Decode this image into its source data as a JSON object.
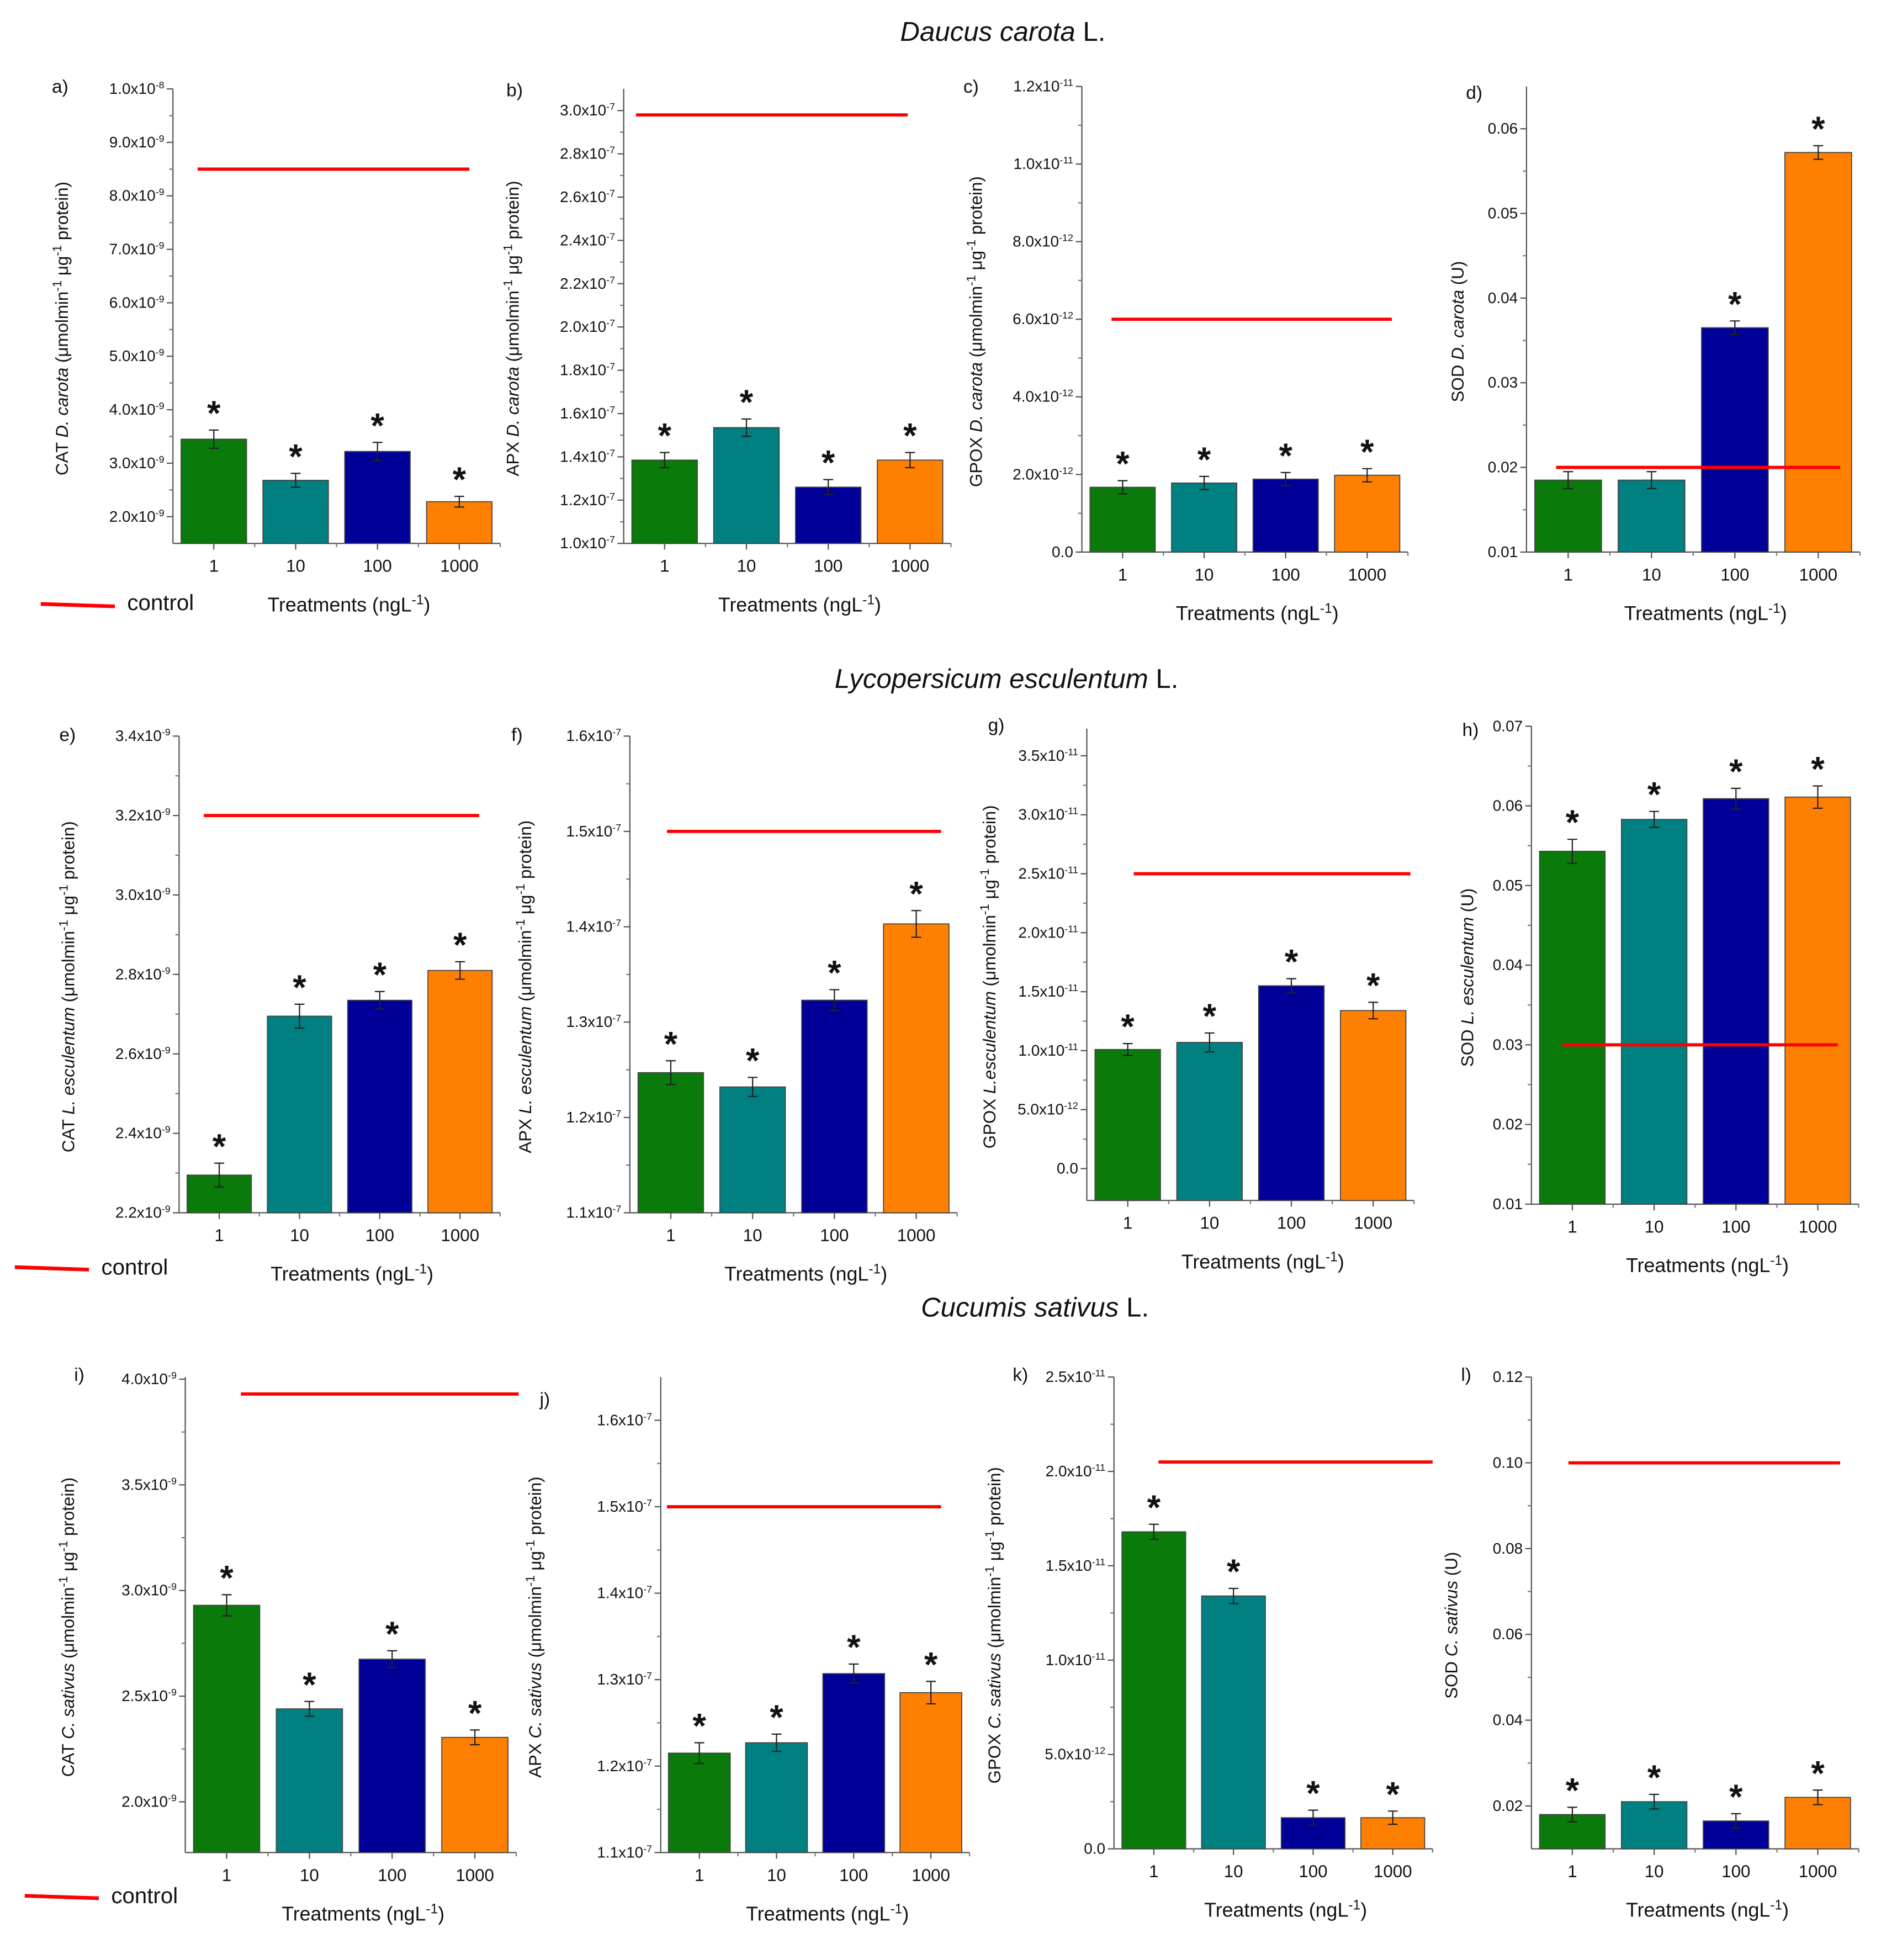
{
  "section_titles": [
    {
      "species": "Daucus carota",
      "suffix": "L."
    },
    {
      "species": "Lycopersicum esculentum",
      "suffix": "L."
    },
    {
      "species": "Cucumis sativus",
      "suffix": "L."
    }
  ],
  "legend": {
    "label": "control",
    "color": "#ff0000"
  },
  "bar_colors": [
    "#0a7a0a",
    "#008080",
    "#000099",
    "#ff8000"
  ],
  "chart_data": [
    {
      "panel": "a)",
      "type": "bar",
      "categories": [
        "1",
        "10",
        "100",
        "1000"
      ],
      "values": [
        3.45e-09,
        2.68e-09,
        3.22e-09,
        2.28e-09
      ],
      "errors": [
        1.7e-10,
        1.3e-10,
        1.7e-10,
        1e-10
      ],
      "significant": [
        true,
        true,
        true,
        true
      ],
      "control": 8.5e-09,
      "ylim": [
        1.5e-09,
        1e-08
      ],
      "yticks": [
        2e-09,
        3e-09,
        4e-09,
        5e-09,
        6e-09,
        7e-09,
        8e-09,
        9e-09,
        1e-08
      ],
      "ytick_labels": [
        "2.0x10^-9",
        "3.0x10^-9",
        "4.0x10^-9",
        "5.0x10^-9",
        "6.0x10^-9",
        "7.0x10^-9",
        "8.0x10^-9",
        "9.0x10^-9",
        "1.0x10^-8"
      ],
      "ylabel": {
        "prefix": "CAT",
        "species": "D. carota",
        "unit": "(μmolmin^-1 μg^-1 protein)"
      },
      "xlabel": "Treatments (ngL^-1)"
    },
    {
      "panel": "b)",
      "type": "bar",
      "categories": [
        "1",
        "10",
        "100",
        "1000"
      ],
      "values": [
        1.385e-07,
        1.535e-07,
        1.26e-07,
        1.385e-07
      ],
      "errors": [
        3.5e-09,
        4e-09,
        3.5e-09,
        3.5e-09
      ],
      "significant": [
        true,
        true,
        true,
        true
      ],
      "control": 2.98e-07,
      "ylim": [
        1e-07,
        3.1e-07
      ],
      "yticks": [
        1e-07,
        1.2e-07,
        1.4e-07,
        1.6e-07,
        1.8e-07,
        2e-07,
        2.2e-07,
        2.4e-07,
        2.6e-07,
        2.8e-07,
        3e-07
      ],
      "ytick_labels": [
        "1.0x10^-7",
        "1.2x10^-7",
        "1.4x10^-7",
        "1.6x10^-7",
        "1.8x10^-7",
        "2.0x10^-7",
        "2.2x10^-7",
        "2.4x10^-7",
        "2.6x10^-7",
        "2.8x10^-7",
        "3.0x10^-7"
      ],
      "ylabel": {
        "prefix": "APX",
        "species": "D. carota",
        "unit": "(μmolmin^-1 μg^-1 protein)"
      },
      "xlabel": "Treatments (ngL^-1)"
    },
    {
      "panel": "c)",
      "type": "bar",
      "categories": [
        "1",
        "10",
        "100",
        "1000"
      ],
      "values": [
        1.67e-12,
        1.78e-12,
        1.88e-12,
        1.98e-12
      ],
      "errors": [
        1.7e-13,
        1.7e-13,
        1.7e-13,
        1.7e-13
      ],
      "significant": [
        true,
        true,
        true,
        true
      ],
      "control": 6e-12,
      "ylim": [
        0,
        1.2e-11
      ],
      "yticks": [
        0,
        2e-12,
        4e-12,
        6e-12,
        8e-12,
        1e-11,
        1.2e-11
      ],
      "ytick_labels": [
        "0.0",
        "2.0x10^-12",
        "4.0x10^-12",
        "6.0x10^-12",
        "8.0x10^-12",
        "1.0x10^-11",
        "1.2x10^-11"
      ],
      "ylabel": {
        "prefix": "GPOX",
        "species": "D. carota",
        "unit": "(μmolmin^-1 μg^-1 protein)"
      },
      "xlabel": "Treatments (ngL^-1)"
    },
    {
      "panel": "d)",
      "type": "bar",
      "categories": [
        "1",
        "10",
        "100",
        "1000"
      ],
      "values": [
        0.0185,
        0.0185,
        0.0365,
        0.0572
      ],
      "errors": [
        0.001,
        0.001,
        0.0008,
        0.0008
      ],
      "significant": [
        false,
        false,
        true,
        true
      ],
      "control": 0.02,
      "ylim": [
        0.01,
        0.065
      ],
      "yticks": [
        0.01,
        0.02,
        0.03,
        0.04,
        0.05,
        0.06
      ],
      "ytick_labels": [
        "0.01",
        "0.02",
        "0.03",
        "0.04",
        "0.05",
        "0.06"
      ],
      "ylabel": {
        "prefix": "SOD",
        "species": "D. carota",
        "unit": "(U)"
      },
      "xlabel": "Treatments (ngL^-1)"
    },
    {
      "panel": "e)",
      "type": "bar",
      "categories": [
        "1",
        "10",
        "100",
        "1000"
      ],
      "values": [
        2.295e-09,
        2.695e-09,
        2.735e-09,
        2.81e-09
      ],
      "errors": [
        3e-11,
        3e-11,
        2.2e-11,
        2.2e-11
      ],
      "significant": [
        true,
        true,
        true,
        true
      ],
      "control": 3.2e-09,
      "ylim": [
        2.2e-09,
        3.4e-09
      ],
      "yticks": [
        2.2e-09,
        2.4e-09,
        2.6e-09,
        2.8e-09,
        3e-09,
        3.2e-09,
        3.4e-09
      ],
      "ytick_labels": [
        "2.2x10^-9",
        "2.4x10^-9",
        "2.6x10^-9",
        "2.8x10^-9",
        "3.0x10^-9",
        "3.2x10^-9",
        "3.4x10^-9"
      ],
      "ylabel": {
        "prefix": "CAT",
        "species": "L. esculentum",
        "unit": "(μmolmin^-1 μg^-1 protein)"
      },
      "xlabel": "Treatments (ngL^-1)"
    },
    {
      "panel": "f)",
      "type": "bar",
      "categories": [
        "1",
        "10",
        "100",
        "1000"
      ],
      "values": [
        1.247e-07,
        1.232e-07,
        1.323e-07,
        1.403e-07
      ],
      "errors": [
        1.25e-09,
        1e-09,
        1.1e-09,
        1.4e-09
      ],
      "significant": [
        true,
        true,
        true,
        true
      ],
      "control": 1.5e-07,
      "ylim": [
        1.1e-07,
        1.6e-07
      ],
      "yticks": [
        1.1e-07,
        1.2e-07,
        1.3e-07,
        1.4e-07,
        1.5e-07,
        1.6e-07
      ],
      "ytick_labels": [
        "1.1x10^-7",
        "1.2x10^-7",
        "1.3x10^-7",
        "1.4x10^-7",
        "1.5x10^-7",
        "1.6x10^-7"
      ],
      "ylabel": {
        "prefix": "APX",
        "species": "L. esculentum",
        "unit": "(μmolmin^-1 μg^-1 protein)"
      },
      "xlabel": "Treatments (ngL^-1)"
    },
    {
      "panel": "g)",
      "type": "bar",
      "categories": [
        "1",
        "10",
        "100",
        "1000"
      ],
      "values": [
        1.01e-11,
        1.07e-11,
        1.55e-11,
        1.34e-11
      ],
      "errors": [
        5e-13,
        8e-13,
        6e-13,
        7e-13
      ],
      "significant": [
        true,
        true,
        true,
        true
      ],
      "control": 2.5e-11,
      "ylim": [
        -2.7e-12,
        3.73e-11
      ],
      "yticks": [
        0,
        5e-12,
        1e-11,
        1.5e-11,
        2e-11,
        2.5e-11,
        3e-11,
        3.5e-11
      ],
      "ytick_labels": [
        "0.0",
        "5.0x10^-12",
        "1.0x10^-11",
        "1.5x10^-11",
        "2.0x10^-11",
        "2.5x10^-11",
        "3.0x10^-11",
        "3.5x10^-11"
      ],
      "ylabel": {
        "prefix": "GPOX",
        "species": "L.esculentum",
        "unit": "(μmolmin^-1 μg^-1 protein)"
      },
      "xlabel": "Treatments (ngL^-1)"
    },
    {
      "panel": "h)",
      "type": "bar",
      "categories": [
        "1",
        "10",
        "100",
        "1000"
      ],
      "values": [
        0.0543,
        0.0583,
        0.0609,
        0.0611
      ],
      "errors": [
        0.0015,
        0.001,
        0.0013,
        0.0014
      ],
      "significant": [
        true,
        true,
        true,
        true
      ],
      "control": 0.03,
      "ylim": [
        0.01,
        0.07
      ],
      "yticks": [
        0.01,
        0.02,
        0.03,
        0.04,
        0.05,
        0.06,
        0.07
      ],
      "ytick_labels": [
        "0.01",
        "0.02",
        "0.03",
        "0.04",
        "0.05",
        "0.06",
        "0.07"
      ],
      "ylabel": {
        "prefix": "SOD",
        "species": "L.  esculentum",
        "unit": "(U)"
      },
      "xlabel": "Treatments (ngL^-1)"
    },
    {
      "panel": "i)",
      "type": "bar",
      "categories": [
        "1",
        "10",
        "100",
        "1000"
      ],
      "values": [
        2.93e-09,
        2.44e-09,
        2.675e-09,
        2.305e-09
      ],
      "errors": [
        5e-11,
        3.5e-11,
        4e-11,
        3.5e-11
      ],
      "significant": [
        true,
        true,
        true,
        true
      ],
      "control": 3.93e-09,
      "ylim": [
        1.76e-09,
        4.01e-09
      ],
      "yticks": [
        2e-09,
        2.5e-09,
        3e-09,
        3.5e-09,
        4e-09
      ],
      "ytick_labels": [
        "2.0x10^-9",
        "2.5x10^-9",
        "3.0x10^-9",
        "3.5x10^-9",
        "4.0x10^-9"
      ],
      "ylabel": {
        "prefix": "CAT",
        "species": "C. sativus",
        "unit": "(μmolmin^-1 μg^-1 protein)"
      },
      "xlabel": "Treatments (ngL^-1)"
    },
    {
      "panel": "j)",
      "type": "bar",
      "categories": [
        "1",
        "10",
        "100",
        "1000"
      ],
      "values": [
        1.215e-07,
        1.227e-07,
        1.307e-07,
        1.285e-07
      ],
      "errors": [
        1.2e-09,
        1e-09,
        1.1e-09,
        1.3e-09
      ],
      "significant": [
        true,
        true,
        true,
        true
      ],
      "control": 1.5e-07,
      "ylim": [
        1.1e-07,
        1.65e-07
      ],
      "yticks": [
        1.1e-07,
        1.2e-07,
        1.3e-07,
        1.4e-07,
        1.5e-07,
        1.6e-07
      ],
      "ytick_labels": [
        "1.1x10^-7",
        "1.2x10^-7",
        "1.3x10^-7",
        "1.4x10^-7",
        "1.5x10^-7",
        "1.6x10^-7"
      ],
      "ylabel": {
        "prefix": "APX",
        "species": "C. sativus",
        "unit": "(μmolmin^-1 μg^-1 protein)"
      },
      "xlabel": "Treatments (ngL^-1)"
    },
    {
      "panel": "k)",
      "type": "bar",
      "categories": [
        "1",
        "10",
        "100",
        "1000"
      ],
      "values": [
        1.68e-11,
        1.34e-11,
        1.65e-12,
        1.65e-12
      ],
      "errors": [
        4e-13,
        4e-13,
        4e-13,
        3.5e-13
      ],
      "significant": [
        true,
        true,
        true,
        true
      ],
      "control": 2.05e-11,
      "ylim": [
        0,
        2.5e-11
      ],
      "yticks": [
        0,
        5e-12,
        1e-11,
        1.5e-11,
        2e-11,
        2.5e-11
      ],
      "ytick_labels": [
        "0.0",
        "5.0x10^-12",
        "1.0x10^-11",
        "1.5x10^-11",
        "2.0x10^-11",
        "2.5x10^-11"
      ],
      "ylabel": {
        "prefix": "GPOX",
        "species": "C. sativus",
        "unit": "(μmolmin^-1 μg^-1 protein)"
      },
      "xlabel": "Treatments (ngL^-1)"
    },
    {
      "panel": "l)",
      "type": "bar",
      "categories": [
        "1",
        "10",
        "100",
        "1000"
      ],
      "values": [
        0.018,
        0.021,
        0.0165,
        0.022
      ],
      "errors": [
        0.0017,
        0.0017,
        0.0017,
        0.0017
      ],
      "significant": [
        true,
        true,
        true,
        true
      ],
      "control": 0.1,
      "ylim": [
        0.01,
        0.12
      ],
      "yticks": [
        0.02,
        0.04,
        0.06,
        0.08,
        0.1,
        0.12
      ],
      "ytick_labels": [
        "0.02",
        "0.04",
        "0.06",
        "0.08",
        "0.10",
        "0.12"
      ],
      "ylabel": {
        "prefix": "SOD",
        "species": "C. sativus",
        "unit": "(U)"
      },
      "xlabel": "Treatments (ngL^-1)"
    }
  ]
}
